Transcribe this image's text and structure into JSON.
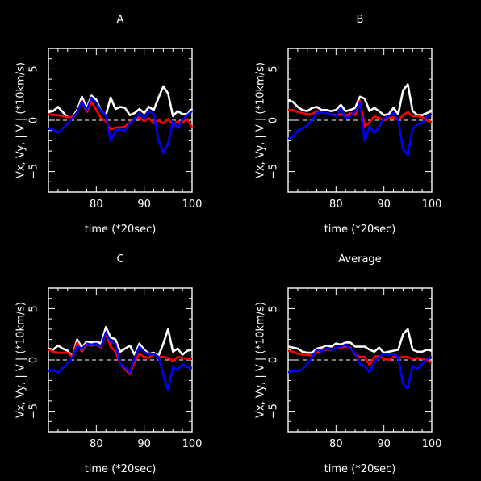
{
  "figure": {
    "background": "#000000",
    "foreground": "#ffffff"
  },
  "chart_data": [
    {
      "type": "line",
      "title": "A",
      "xlabel": "time (*20sec)",
      "ylabel": "Vx, Vy, | V | (*10km/s)",
      "xlim": [
        70,
        100
      ],
      "ylim": [
        -7,
        7
      ],
      "xticks": [
        80,
        90,
        100
      ],
      "yticks": [
        -5,
        0,
        5
      ],
      "zero_line": "dashed",
      "x": [
        70,
        71,
        72,
        73,
        74,
        75,
        76,
        77,
        78,
        79,
        80,
        81,
        82,
        83,
        84,
        85,
        86,
        87,
        88,
        89,
        90,
        91,
        92,
        93,
        94,
        95,
        96,
        97,
        98,
        99,
        100
      ],
      "series": [
        {
          "color": "#ffffff",
          "values": [
            0.8,
            0.9,
            1.3,
            0.8,
            0.3,
            0.3,
            1.0,
            2.3,
            1.2,
            2.4,
            2.0,
            0.9,
            0.5,
            2.2,
            1.1,
            1.3,
            1.2,
            0.5,
            0.7,
            1.1,
            0.7,
            1.3,
            1.0,
            2.2,
            3.3,
            2.6,
            0.4,
            0.9,
            0.6,
            0.6,
            1.1
          ]
        },
        {
          "color": "#ff0000",
          "values": [
            0.6,
            0.5,
            0.5,
            0.4,
            0.3,
            0.3,
            0.8,
            1.9,
            0.8,
            1.8,
            1.0,
            0.2,
            -0.1,
            -0.9,
            -0.7,
            -0.7,
            -0.6,
            -0.2,
            0.1,
            0.3,
            -0.1,
            0.2,
            -0.3,
            0.0,
            -0.3,
            0.1,
            -0.4,
            -0.1,
            -0.2,
            0.1,
            -0.7
          ]
        },
        {
          "color": "#0000ff",
          "values": [
            -0.8,
            -0.9,
            -1.2,
            -0.8,
            -0.3,
            0.2,
            0.8,
            1.8,
            1.0,
            2.2,
            1.7,
            0.9,
            0.5,
            -2.0,
            -1.0,
            -0.9,
            -1.0,
            -0.3,
            0.1,
            0.7,
            0.2,
            0.9,
            0.6,
            -2.0,
            -3.2,
            -2.3,
            -0.1,
            -0.8,
            0.1,
            0.5,
            0.9
          ]
        }
      ]
    },
    {
      "type": "line",
      "title": "B",
      "xlabel": "time (*20sec)",
      "ylabel": "Vx, Vy, | V | (*10km/s)",
      "xlim": [
        70,
        100
      ],
      "ylim": [
        -7,
        7
      ],
      "xticks": [
        80,
        90,
        100
      ],
      "yticks": [
        -5,
        0,
        5
      ],
      "zero_line": "dashed",
      "x": [
        70,
        71,
        72,
        73,
        74,
        75,
        76,
        77,
        78,
        79,
        80,
        81,
        82,
        83,
        84,
        85,
        86,
        87,
        88,
        89,
        90,
        91,
        92,
        93,
        94,
        95,
        96,
        97,
        98,
        99,
        100
      ],
      "series": [
        {
          "color": "#ffffff",
          "values": [
            1.9,
            1.8,
            1.3,
            1.0,
            0.9,
            1.2,
            1.3,
            1.0,
            1.0,
            0.9,
            1.0,
            1.5,
            0.9,
            1.0,
            1.2,
            2.3,
            2.1,
            0.9,
            1.2,
            0.9,
            0.5,
            0.6,
            1.2,
            0.6,
            2.9,
            3.5,
            0.9,
            0.5,
            0.5,
            0.7,
            0.9
          ]
        },
        {
          "color": "#ff0000",
          "values": [
            1.0,
            1.0,
            0.8,
            0.7,
            0.6,
            0.6,
            0.9,
            0.8,
            0.7,
            0.6,
            0.5,
            0.6,
            0.4,
            0.7,
            0.5,
            1.9,
            -0.6,
            -0.2,
            0.4,
            0.2,
            0.0,
            0.2,
            0.3,
            0.0,
            0.5,
            0.8,
            0.4,
            0.4,
            0.3,
            0.0,
            -0.2
          ]
        },
        {
          "color": "#0000ff",
          "values": [
            -1.8,
            -1.6,
            -1.0,
            -0.8,
            -0.5,
            0.0,
            0.7,
            0.8,
            0.7,
            0.6,
            0.4,
            1.2,
            0.2,
            0.4,
            0.9,
            1.7,
            -2.0,
            -0.6,
            -1.2,
            -0.7,
            0.2,
            0.4,
            0.7,
            0.0,
            -2.8,
            -3.4,
            -0.8,
            -0.4,
            -0.3,
            0.4,
            0.6
          ]
        }
      ]
    },
    {
      "type": "line",
      "title": "C",
      "xlabel": "time (*20sec)",
      "ylabel": "Vx, Vy, | V | (*10km/s)",
      "xlim": [
        70,
        100
      ],
      "ylim": [
        -7,
        7
      ],
      "xticks": [
        80,
        90,
        100
      ],
      "yticks": [
        -5,
        0,
        5
      ],
      "zero_line": "dashed",
      "x": [
        70,
        71,
        72,
        73,
        74,
        75,
        76,
        77,
        78,
        79,
        80,
        81,
        82,
        83,
        84,
        85,
        86,
        87,
        88,
        89,
        90,
        91,
        92,
        93,
        94,
        95,
        96,
        97,
        98,
        99,
        100
      ],
      "series": [
        {
          "color": "#ffffff",
          "values": [
            1.1,
            1.0,
            1.4,
            1.1,
            0.9,
            0.3,
            2.0,
            1.2,
            1.8,
            1.7,
            1.8,
            1.6,
            3.2,
            2.2,
            2.0,
            0.8,
            1.1,
            1.4,
            0.5,
            1.6,
            1.0,
            0.6,
            0.7,
            0.4,
            1.6,
            3.0,
            0.8,
            1.1,
            0.5,
            0.9,
            1.0
          ]
        },
        {
          "color": "#ff0000",
          "values": [
            1.0,
            0.8,
            0.7,
            0.7,
            0.7,
            0.3,
            1.7,
            0.8,
            1.5,
            1.4,
            1.5,
            1.2,
            2.6,
            1.3,
            0.8,
            -0.4,
            -0.9,
            -1.4,
            -0.2,
            0.6,
            0.3,
            0.2,
            0.6,
            0.3,
            0.3,
            0.2,
            -0.1,
            0.3,
            0.2,
            0.1,
            0.1
          ]
        },
        {
          "color": "#0000ff",
          "values": [
            -1.1,
            -1.0,
            -1.2,
            -0.8,
            -0.3,
            0.2,
            1.3,
            1.1,
            1.6,
            1.5,
            1.6,
            1.3,
            2.7,
            1.8,
            1.6,
            -0.4,
            -0.7,
            -1.2,
            0.2,
            1.3,
            0.8,
            0.5,
            0.6,
            0.3,
            -1.5,
            -2.9,
            -0.7,
            -1.0,
            -0.4,
            -0.7,
            -0.8
          ]
        }
      ]
    },
    {
      "type": "line",
      "title": "Average",
      "xlabel": "time (*20sec)",
      "ylabel": "Vx, Vy, | V | (*10km/s)",
      "xlim": [
        70,
        100
      ],
      "ylim": [
        -7,
        7
      ],
      "xticks": [
        80,
        90,
        100
      ],
      "yticks": [
        -5,
        0,
        5
      ],
      "zero_line": "dashed",
      "x": [
        70,
        71,
        72,
        73,
        74,
        75,
        76,
        77,
        78,
        79,
        80,
        81,
        82,
        83,
        84,
        85,
        86,
        87,
        88,
        89,
        90,
        91,
        92,
        93,
        94,
        95,
        96,
        97,
        98,
        99,
        100
      ],
      "series": [
        {
          "color": "#ffffff",
          "values": [
            1.3,
            1.2,
            1.1,
            0.8,
            0.7,
            0.7,
            1.1,
            1.2,
            1.4,
            1.3,
            1.6,
            1.5,
            1.7,
            1.7,
            1.3,
            1.3,
            1.3,
            1.0,
            0.8,
            1.2,
            0.7,
            0.8,
            0.9,
            1.0,
            2.5,
            3.0,
            1.0,
            0.8,
            0.8,
            1.0,
            0.9
          ]
        },
        {
          "color": "#ff0000",
          "values": [
            0.9,
            0.8,
            0.6,
            0.5,
            0.5,
            0.4,
            0.7,
            0.9,
            1.0,
            1.0,
            1.2,
            1.2,
            1.3,
            1.2,
            0.5,
            0.3,
            0.3,
            -0.5,
            0.3,
            0.4,
            0.1,
            0.0,
            0.3,
            0.2,
            0.3,
            0.3,
            0.1,
            0.2,
            0.1,
            0.0,
            -0.3
          ]
        },
        {
          "color": "#0000ff",
          "values": [
            -1.2,
            -1.1,
            -1.1,
            -0.9,
            -0.4,
            0.3,
            1.0,
            0.8,
            1.1,
            1.0,
            1.2,
            1.3,
            1.5,
            1.1,
            0.6,
            -0.4,
            -0.6,
            -1.2,
            -0.3,
            0.3,
            0.6,
            0.5,
            0.6,
            0.3,
            -2.3,
            -2.8,
            -0.6,
            -0.9,
            -0.4,
            0.1,
            0.3
          ]
        }
      ]
    }
  ]
}
